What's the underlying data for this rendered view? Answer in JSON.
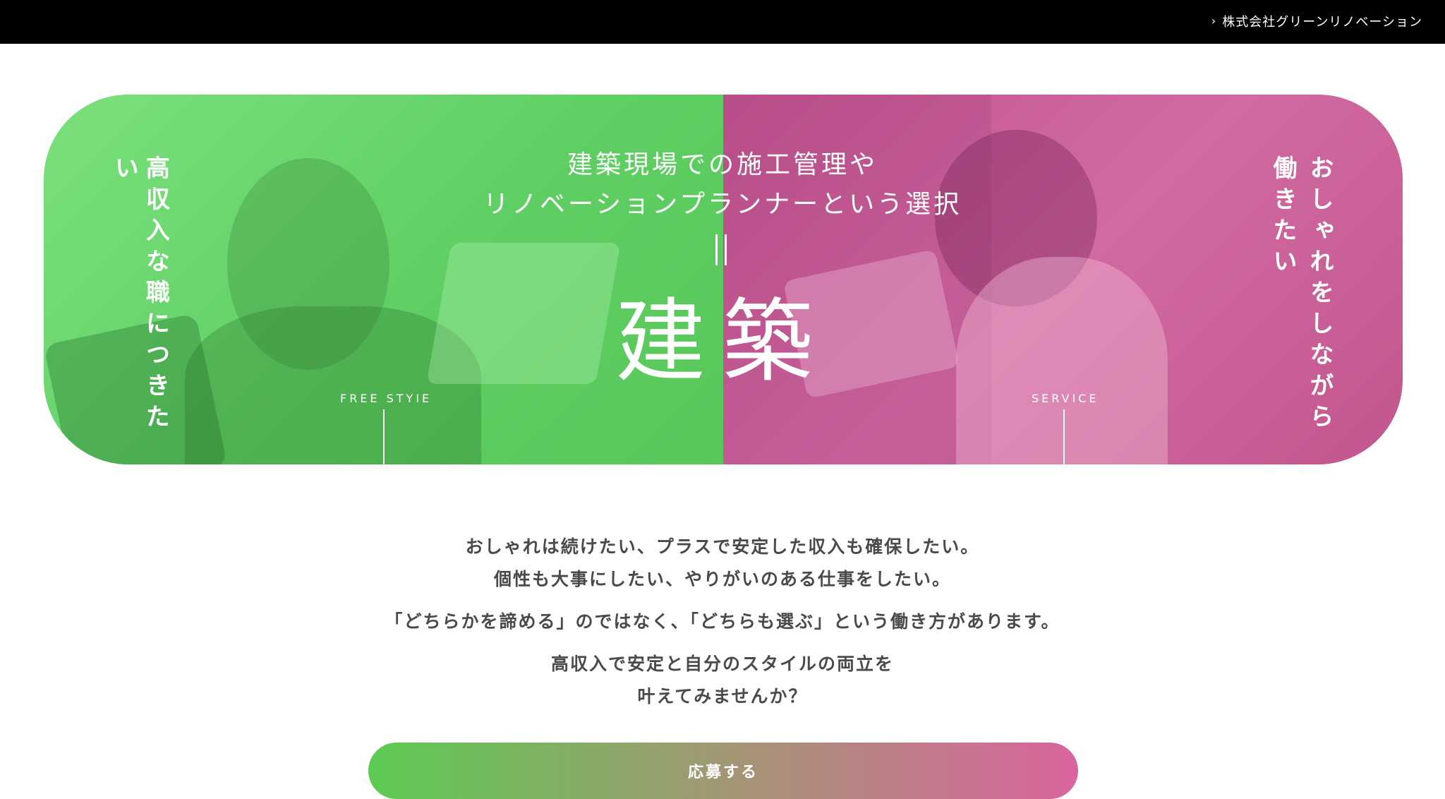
{
  "header": {
    "company_link": "株式会社グリーンリノベーション",
    "chevron_icon": "chevron-right-icon"
  },
  "hero": {
    "left_vertical": "高収入な職につきたい",
    "right_vertical_line1": "おしゃれをしながら",
    "right_vertical_line2": "働きたい",
    "heading_line1": "建築現場での施工管理や",
    "heading_line2": "リノベーションプランナーという選択",
    "big_word": "建築",
    "tag_left": "FREE STYIE",
    "tag_right": "SERVICE",
    "colors": {
      "left_tint": "#5fcf63",
      "right_tint": "#c85a96"
    }
  },
  "copy": {
    "line1": "おしゃれは続けたい、プラスで安定した収入も確保したい。",
    "line2": "個性も大事にしたい、やりがいのある仕事をしたい。",
    "line3": "「どちらかを諦める」のではなく、「どちらも選ぶ」という働き方があります。",
    "line4": "高収入で安定と自分のスタイルの両立を",
    "line5": "叶えてみませんか？"
  },
  "cta": {
    "label": "応募する",
    "gradient_start": "#5ccb52",
    "gradient_end": "#d9649d"
  }
}
